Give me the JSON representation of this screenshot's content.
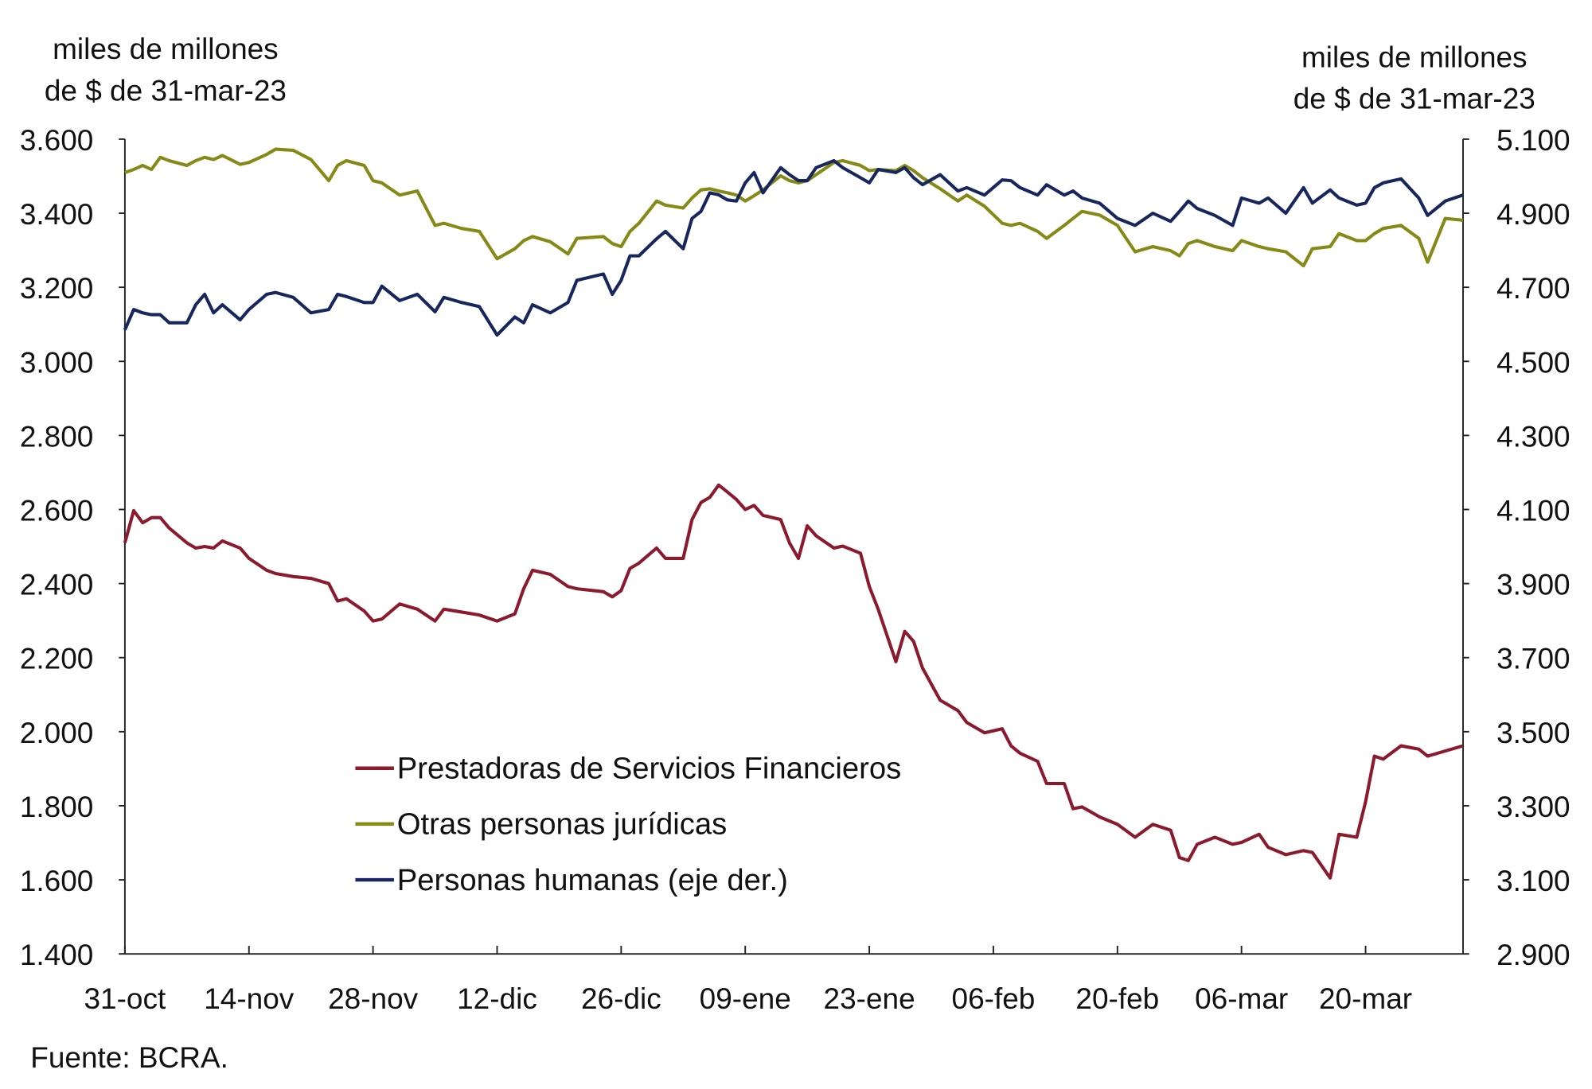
{
  "chart_data": {
    "type": "line",
    "left_axis_label": [
      "miles de millones",
      "de $ de 31-mar-23"
    ],
    "right_axis_label": [
      "miles de millones",
      "de $ de 31-mar-23"
    ],
    "source": "Fuente: BCRA.",
    "ylim_left": [
      1400,
      3600
    ],
    "ylim_right": [
      2900,
      5100
    ],
    "yticks_left": [
      1400,
      1600,
      1800,
      2000,
      2200,
      2400,
      2600,
      2800,
      3000,
      3200,
      3400,
      3600
    ],
    "yticks_left_labels": [
      "1.400",
      "1.600",
      "1.800",
      "2.000",
      "2.200",
      "2.400",
      "2.600",
      "2.800",
      "3.000",
      "3.200",
      "3.400",
      "3.600"
    ],
    "yticks_right": [
      2900,
      3100,
      3300,
      3500,
      3700,
      3900,
      4100,
      4300,
      4500,
      4700,
      4900,
      5100
    ],
    "yticks_right_labels": [
      "2.900",
      "3.100",
      "3.300",
      "3.500",
      "3.700",
      "3.900",
      "4.100",
      "4.300",
      "4.500",
      "4.700",
      "4.900",
      "5.100"
    ],
    "xlim": [
      "2022-10-31",
      "2023-03-31"
    ],
    "xticks": [
      "2022-10-31",
      "2022-11-14",
      "2022-11-28",
      "2022-12-12",
      "2022-12-26",
      "2023-01-09",
      "2023-01-23",
      "2023-02-06",
      "2023-02-20",
      "2023-03-06",
      "2023-03-20"
    ],
    "xtick_labels": [
      "31-oct",
      "14-nov",
      "28-nov",
      "12-dic",
      "26-dic",
      "09-ene",
      "23-ene",
      "06-feb",
      "20-feb",
      "06-mar",
      "20-mar"
    ],
    "grid": false,
    "legend_position": "center-left",
    "x": [
      "2022-10-31",
      "2022-11-01",
      "2022-11-02",
      "2022-11-03",
      "2022-11-04",
      "2022-11-05",
      "2022-11-07",
      "2022-11-08",
      "2022-11-09",
      "2022-11-10",
      "2022-11-11",
      "2022-11-13",
      "2022-11-14",
      "2022-11-16",
      "2022-11-17",
      "2022-11-19",
      "2022-11-21",
      "2022-11-23",
      "2022-11-24",
      "2022-11-25",
      "2022-11-27",
      "2022-11-28",
      "2022-11-29",
      "2022-12-01",
      "2022-12-03",
      "2022-12-05",
      "2022-12-06",
      "2022-12-08",
      "2022-12-10",
      "2022-12-12",
      "2022-12-14",
      "2022-12-15",
      "2022-12-16",
      "2022-12-18",
      "2022-12-20",
      "2022-12-21",
      "2022-12-24",
      "2022-12-25",
      "2022-12-26",
      "2022-12-27",
      "2022-12-28",
      "2022-12-30",
      "2022-12-31",
      "2023-01-02",
      "2023-01-03",
      "2023-01-04",
      "2023-01-05",
      "2023-01-06",
      "2023-01-07",
      "2023-01-08",
      "2023-01-09",
      "2023-01-10",
      "2023-01-11",
      "2023-01-13",
      "2023-01-14",
      "2023-01-15",
      "2023-01-16",
      "2023-01-17",
      "2023-01-19",
      "2023-01-20",
      "2023-01-22",
      "2023-01-23",
      "2023-01-24",
      "2023-01-26",
      "2023-01-27",
      "2023-01-28",
      "2023-01-29",
      "2023-01-31",
      "2023-02-02",
      "2023-02-03",
      "2023-02-05",
      "2023-02-07",
      "2023-02-08",
      "2023-02-09",
      "2023-02-11",
      "2023-02-12",
      "2023-02-14",
      "2023-02-15",
      "2023-02-16",
      "2023-02-18",
      "2023-02-20",
      "2023-02-22",
      "2023-02-24",
      "2023-02-26",
      "2023-02-27",
      "2023-02-28",
      "2023-03-01",
      "2023-03-03",
      "2023-03-05",
      "2023-03-06",
      "2023-03-08",
      "2023-03-09",
      "2023-03-11",
      "2023-03-13",
      "2023-03-14",
      "2023-03-16",
      "2023-03-17",
      "2023-03-19",
      "2023-03-20",
      "2023-03-21",
      "2023-03-22",
      "2023-03-24",
      "2023-03-26",
      "2023-03-27",
      "2023-03-29",
      "2023-03-31"
    ],
    "series": [
      {
        "name": "Prestadoras de Servicios Financieros",
        "axis": "left",
        "color": "#8c1a2e",
        "values": [
          2510,
          2597,
          2564,
          2578,
          2578,
          2550,
          2510,
          2496,
          2500,
          2496,
          2515,
          2496,
          2468,
          2436,
          2427,
          2419,
          2414,
          2400,
          2353,
          2359,
          2326,
          2299,
          2304,
          2345,
          2331,
          2299,
          2331,
          2323,
          2315,
          2299,
          2318,
          2386,
          2436,
          2425,
          2392,
          2386,
          2378,
          2364,
          2381,
          2441,
          2455,
          2496,
          2468,
          2468,
          2573,
          2619,
          2633,
          2666,
          2647,
          2627,
          2600,
          2611,
          2584,
          2573,
          2510,
          2468,
          2556,
          2529,
          2496,
          2501,
          2482,
          2392,
          2331,
          2189,
          2271,
          2244,
          2172,
          2085,
          2057,
          2025,
          1997,
          2008,
          1962,
          1942,
          1920,
          1860,
          1860,
          1792,
          1797,
          1770,
          1750,
          1715,
          1750,
          1734,
          1660,
          1652,
          1696,
          1715,
          1696,
          1701,
          1723,
          1688,
          1668,
          1679,
          1674,
          1605,
          1723,
          1715,
          1811,
          1934,
          1926,
          1962,
          1953,
          1934,
          1948,
          1962
        ]
      },
      {
        "name": "Otras personas jurídicas",
        "axis": "left",
        "color": "#858a16",
        "values": [
          3510,
          3518,
          3529,
          3518,
          3551,
          3542,
          3529,
          3542,
          3551,
          3545,
          3556,
          3532,
          3537,
          3559,
          3573,
          3570,
          3545,
          3488,
          3529,
          3542,
          3529,
          3488,
          3482,
          3449,
          3460,
          3367,
          3373,
          3359,
          3351,
          3277,
          3304,
          3326,
          3337,
          3323,
          3290,
          3332,
          3337,
          3318,
          3310,
          3351,
          3373,
          3433,
          3422,
          3414,
          3441,
          3463,
          3466,
          3460,
          3455,
          3449,
          3433,
          3447,
          3463,
          3501,
          3488,
          3482,
          3488,
          3504,
          3537,
          3542,
          3529,
          3515,
          3518,
          3515,
          3529,
          3515,
          3496,
          3466,
          3433,
          3449,
          3419,
          3373,
          3367,
          3373,
          3351,
          3332,
          3367,
          3386,
          3405,
          3395,
          3367,
          3296,
          3310,
          3299,
          3285,
          3318,
          3326,
          3310,
          3299,
          3326,
          3310,
          3304,
          3296,
          3258,
          3304,
          3310,
          3345,
          3326,
          3326,
          3345,
          3359,
          3367,
          3332,
          3268,
          3386,
          3381
        ]
      },
      {
        "name": "Personas humanas (eje der.)",
        "axis": "right",
        "color": "#17275e",
        "values": [
          4585,
          4640,
          4631,
          4626,
          4626,
          4604,
          4604,
          4653,
          4681,
          4631,
          4653,
          4612,
          4640,
          4681,
          4686,
          4673,
          4631,
          4640,
          4681,
          4675,
          4659,
          4659,
          4703,
          4664,
          4681,
          4634,
          4673,
          4659,
          4648,
          4571,
          4620,
          4604,
          4653,
          4631,
          4659,
          4719,
          4736,
          4681,
          4719,
          4785,
          4785,
          4831,
          4851,
          4804,
          4886,
          4905,
          4955,
          4950,
          4936,
          4933,
          4982,
          5010,
          4955,
          5023,
          5004,
          4988,
          4988,
          5023,
          5042,
          5023,
          4996,
          4982,
          5018,
          5010,
          5023,
          4996,
          4977,
          5004,
          4960,
          4969,
          4949,
          4990,
          4988,
          4969,
          4949,
          4977,
          4949,
          4960,
          4941,
          4927,
          4886,
          4867,
          4900,
          4878,
          4905,
          4933,
          4913,
          4894,
          4867,
          4941,
          4927,
          4941,
          4900,
          4969,
          4927,
          4963,
          4941,
          4922,
          4927,
          4969,
          4982,
          4993,
          4941,
          4894,
          4933,
          4949
        ]
      }
    ]
  }
}
